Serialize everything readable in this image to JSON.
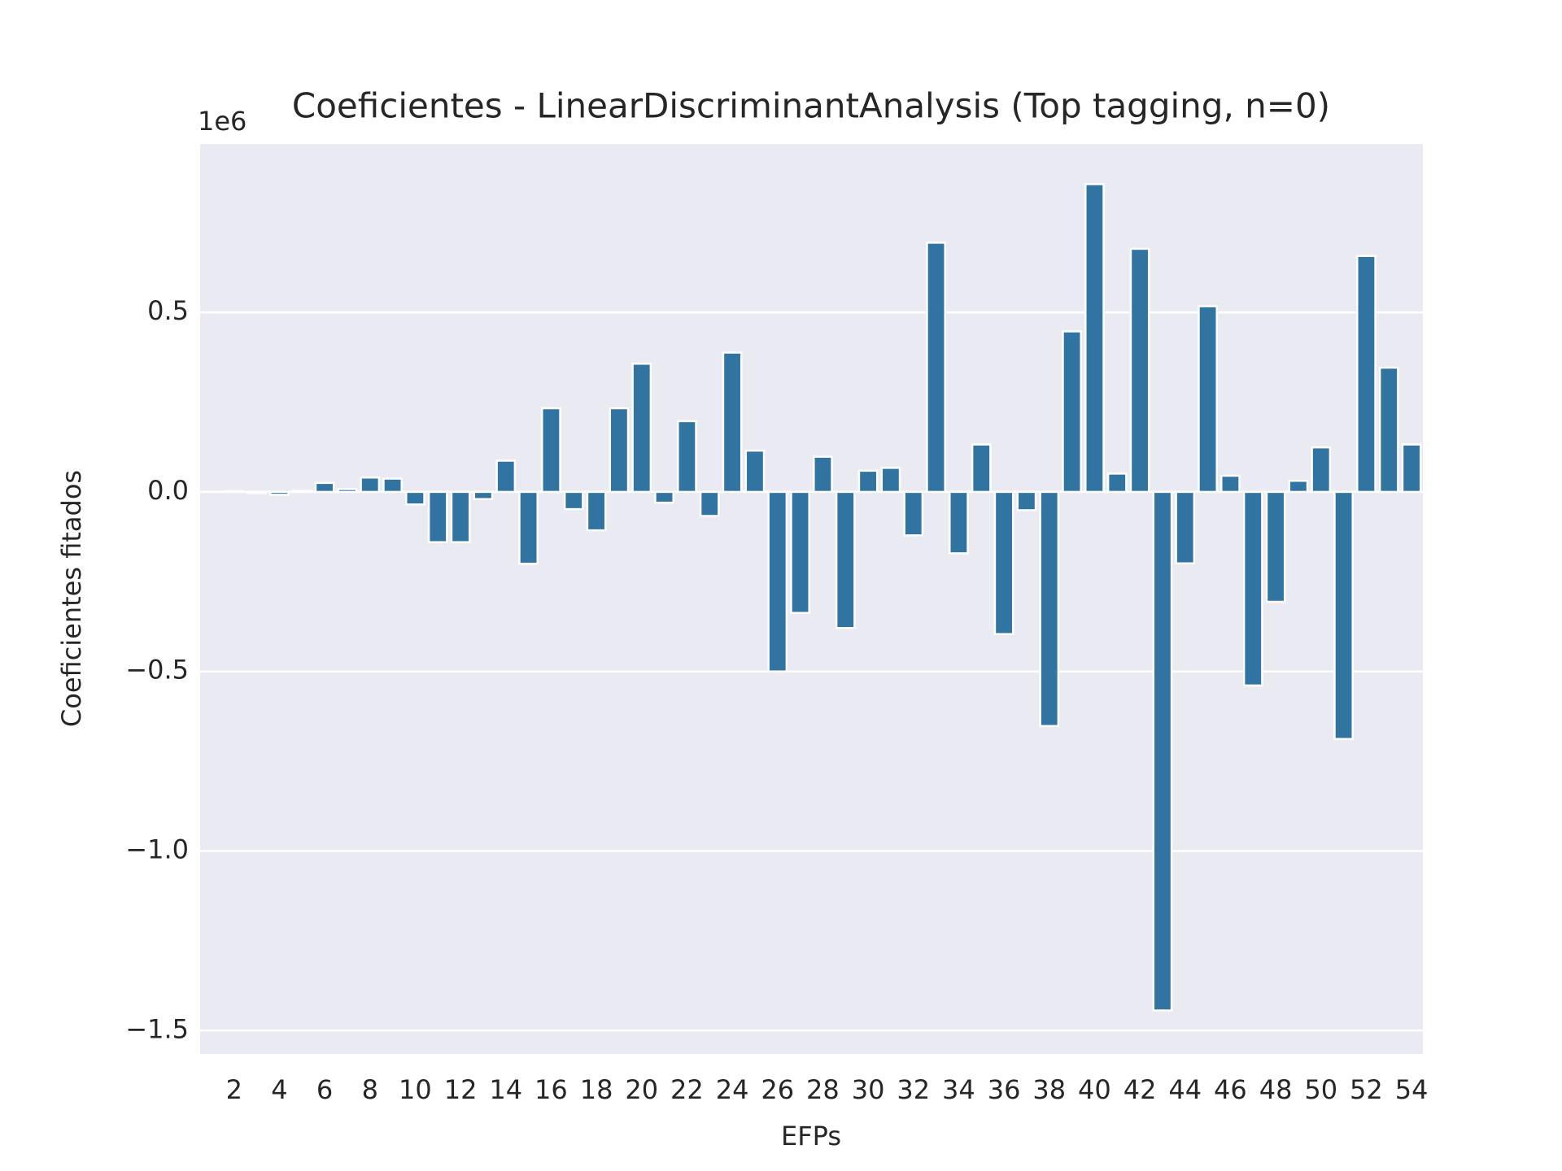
{
  "chart_data": {
    "type": "bar",
    "title": "Coeficientes - LinearDiscriminantAnalysis (Top tagging, n=0)",
    "xlabel": "EFPs",
    "ylabel": "Coeficientes fitados",
    "offset_label": "1e6",
    "categories": [
      null,
      "2",
      null,
      "4",
      null,
      "6",
      null,
      "8",
      null,
      "10",
      null,
      "12",
      null,
      "14",
      null,
      "16",
      null,
      "18",
      null,
      "20",
      null,
      "22",
      null,
      "24",
      null,
      "26",
      null,
      "28",
      null,
      "30",
      null,
      "32",
      null,
      "34",
      null,
      "36",
      null,
      "38",
      null,
      "40",
      null,
      "42",
      null,
      "44",
      null,
      "46",
      null,
      "48",
      null,
      "50",
      null,
      "52",
      null,
      "54"
    ],
    "values": [
      0.001,
      0.002,
      -0.003,
      -0.008,
      0.003,
      0.025,
      0.008,
      0.04,
      0.037,
      -0.035,
      -0.14,
      -0.14,
      -0.02,
      0.087,
      -0.2,
      0.233,
      -0.048,
      -0.107,
      0.233,
      0.357,
      -0.03,
      0.197,
      -0.067,
      0.388,
      0.115,
      -0.5,
      -0.337,
      0.098,
      -0.379,
      0.059,
      0.067,
      -0.121,
      0.694,
      -0.171,
      0.132,
      -0.396,
      -0.051,
      -0.652,
      0.447,
      0.857,
      0.051,
      0.677,
      -1.444,
      -0.199,
      0.517,
      0.045,
      -0.539,
      -0.306,
      0.031,
      0.124,
      -0.688,
      0.657,
      0.346,
      0.132
    ],
    "color": "#3274a1",
    "ylim": [
      -1.565,
      0.969
    ],
    "yticks": [
      {
        "value": -1.5,
        "label": "−1.5"
      },
      {
        "value": -1.0,
        "label": "−1.0"
      },
      {
        "value": -0.5,
        "label": "−0.5"
      },
      {
        "value": 0,
        "label": "0.0"
      },
      0.5
    ],
    "grid": true
  }
}
